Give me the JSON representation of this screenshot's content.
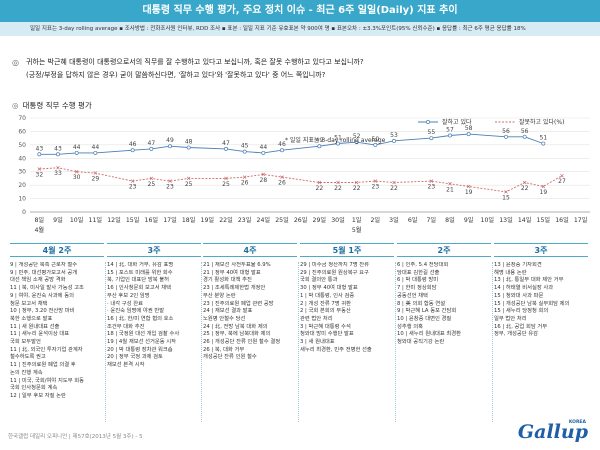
{
  "header": {
    "title": "대통령 직무 수행 평가, 주요 정치 이슈 - 최근 6주 일일(Daily) 지표 추이",
    "method": "일일 지표는 3-day rolling average  ▪ 조사방법 : 전화조사원 인터뷰, RDD 조사  ▪ 표본 : 일일 지표 기준 유효표본 약 900여 명  ▪ 표본오차 : ±3.3%포인트(95% 신뢰수준)  ▪ 응답률 : 최근 6주 평균 응답률 18%"
  },
  "question": {
    "line1": "귀하는 박근혜 대통령이 대통령으로서의 직무를 잘 수행하고 있다고 보십니까, 혹은 잘못 수행하고 있다고 보십니까?",
    "line2": "(긍정/부정을 답하지 않은 경우) 굳이 말씀하신다면, '잘하고 있다'와 '잘못하고 있다' 중 어느 쪽입니까?"
  },
  "section_title": "대통령 직무 수행 평가",
  "chart_data": {
    "type": "line",
    "title": "대통령 직무 수행 평가",
    "annotation": "* 일일 지표는 3-day rolling average",
    "ylim": [
      0,
      70
    ],
    "yticks": [
      "0",
      "10",
      "20",
      "30",
      "40",
      "50",
      "60",
      "70"
    ],
    "grid": true,
    "legend_position": "top-right",
    "x": [
      "8일",
      "9일",
      "10일",
      "11일",
      "12일",
      "15일",
      "16일",
      "17일",
      "18일",
      "19일",
      "22일",
      "23일",
      "24일",
      "25일",
      "26일",
      "29일",
      "30일",
      "1일",
      "2일",
      "3일",
      "6일",
      "7일",
      "8일",
      "9일",
      "10일",
      "13일",
      "14일",
      "15일",
      "16일",
      "17일"
    ],
    "month_labels": [
      {
        "label": "4월",
        "at_index": 0
      },
      {
        "label": "5월",
        "at_index": 17
      }
    ],
    "series": [
      {
        "name": "잘하고 있다",
        "color": "#4a7fb5",
        "values": [
          43,
          43,
          44,
          44,
          null,
          46,
          47,
          49,
          48,
          null,
          47,
          45,
          44,
          46,
          null,
          49,
          51,
          52,
          50,
          53,
          null,
          55,
          57,
          58,
          null,
          56,
          56,
          51,
          null,
          null
        ],
        "labels": [
          "43",
          "43",
          "44",
          "44",
          "",
          "46",
          "47",
          "49",
          "48",
          "",
          "47",
          "45",
          "44",
          "46",
          "",
          "49",
          "51",
          "52",
          "50",
          "53",
          "",
          "55",
          "57",
          "58",
          "",
          "56",
          "56",
          "51",
          "",
          ""
        ]
      },
      {
        "name": "잘못하고 있다(%)",
        "color": "#d06a6a",
        "values": [
          32,
          33,
          30,
          29,
          null,
          23,
          25,
          23,
          25,
          null,
          25,
          26,
          28,
          26,
          null,
          22,
          22,
          22,
          23,
          22,
          null,
          23,
          21,
          19,
          null,
          15,
          22,
          19,
          27,
          null
        ],
        "labels": [
          "32",
          "33",
          "30",
          "29",
          "",
          "23",
          "25",
          "23",
          "25",
          "",
          "25",
          "26",
          "28",
          "26",
          "",
          "22",
          "22",
          "22",
          "23",
          "22",
          "",
          "23",
          "21",
          "19",
          "",
          "15",
          "22",
          "19",
          "27",
          ""
        ]
      }
    ]
  },
  "weeks": [
    "4월 2주",
    "3주",
    "4주",
    "5월 1주",
    "2주",
    "3주"
  ],
  "issues": [
    [
      "9 | 개성공단 북측 근로자 철수",
      "9 | 민주, 대선평가보고서 공개",
      "   대선 책임 소재 공방 격화",
      "11 | 북, 미사일 발사 가능성 고조",
      "9 | 여야, 윤진숙 사과에 동의",
      "   청문 보고서 채택",
      "10 | 정부, 3.20 전산망 마비",
      "   북한 소행으로 발표",
      "11 | 새 원내대표 선출",
      "11 | 새누리 윤석이상 대표",
      "   국회 모두발언",
      "11 | 北, 외국인 투자기업 관계자",
      "   철수하도록 권고",
      "11 | 진주의료원 폐업 의결 후",
      "   논의 진행 계속",
      "11 | 미국, 국회/여야 지도부 회동",
      "   국회 인사청문회 계속",
      "12 | 일부 후보 자질 논란"
    ],
    [
      "14 | 北, 대화 거부, 유감 표명",
      "15 | 포스트 미래를 위한 회수",
      "   북, 기업인 대표단 방북 불허",
      "16 | 인사청문회 보고서 채택",
      "   무산 후보 2인 임명",
      "   · 내각 구성 완료",
      "   · 윤진숙 임명에 야권 반발",
      "16 | 北, 한/미 연합 협의 호소",
      "   조건부 대화 추진",
      "18 | 국정원 대선 개입 검찰 수사",
      "19 | 4월 재보선 선거운동 시작",
      "20 | 박 대통령 장차관 워크숍",
      "20 | 정부 국정 과제 검토",
      "   재보선 본격 시작"
    ],
    [
      "21 | 재보선 사전투표율 6.9%",
      "21 | 정부 40여 대형 발표",
      "   경기 활성화 대책 추진",
      "23 | 조세특례제한법 개정안",
      "   부산 분양 논란",
      "23 | 진주의료원 폐업 관련 공방",
      "24 | 재보선 결과 발표",
      "   노원병 안철수 당선",
      "24 | 北, 전방 남북 대화 제의",
      "25 | 정부, 북에 남북대화 제의",
      "26 | 개성공단 잔류 인원 철수 결정",
      "26 | 북, 대화 거부",
      "   개성공단 잔류 인원 철수"
    ],
    [
      "29 | 미수금 정산까지 7명 잔류",
      "29 | 진주의료원 원상복구 요구",
      "   국회 결의안 통과",
      "30 | 정부 40여 대형 발표",
      "1 | 박 대통령, 인사 검증",
      "2 | 개성 잔류 7명 귀환",
      "2 | 국회 본회의 부동산",
      "   관련 법안 처리",
      "3 | 박근혜 대통령 수석",
      "   청와대 방미 수행단 발표",
      "3 | 새 원내대표",
      "   새누리 최경환, 민주 전병헌 선출"
    ],
    [
      "6 | 인주, 5.4 전당대회",
      "   당대표 김한길 선출",
      "6 | 박 대통령 방미",
      "7 | 한미 정상회담",
      "   공동선언 채택",
      "8 | 美 의회 합동 연설",
      "9 | 박근혜 LA 동포 간담회",
      "10 | 윤창중 대변인 경질",
      "   성추행 의혹",
      "10 | 새누리 원내대표 최경환",
      "   청와대 공직기강 논란"
    ],
    [
      "13 | 윤창중 기자회견",
      "   해명 내용 논란",
      "13 | 北, 통일부 대화 제안 거부",
      "14 | 허태열 비서실장 사과",
      "15 | 청와대 사과 파문",
      "15 | 개성공단 남북 실무회담 제의",
      "15 | 새누리 당정청 회의",
      "   일부 법안 처리",
      "16 | 北, 공업 회담 거부",
      "   정부, 개성공단 유감"
    ]
  ],
  "footer": "한국갤럽 데일리 오피니언 | 제57호(2013년 5월 3주) - 5",
  "logo": {
    "text": "Gallup",
    "sub": "KOREA"
  }
}
